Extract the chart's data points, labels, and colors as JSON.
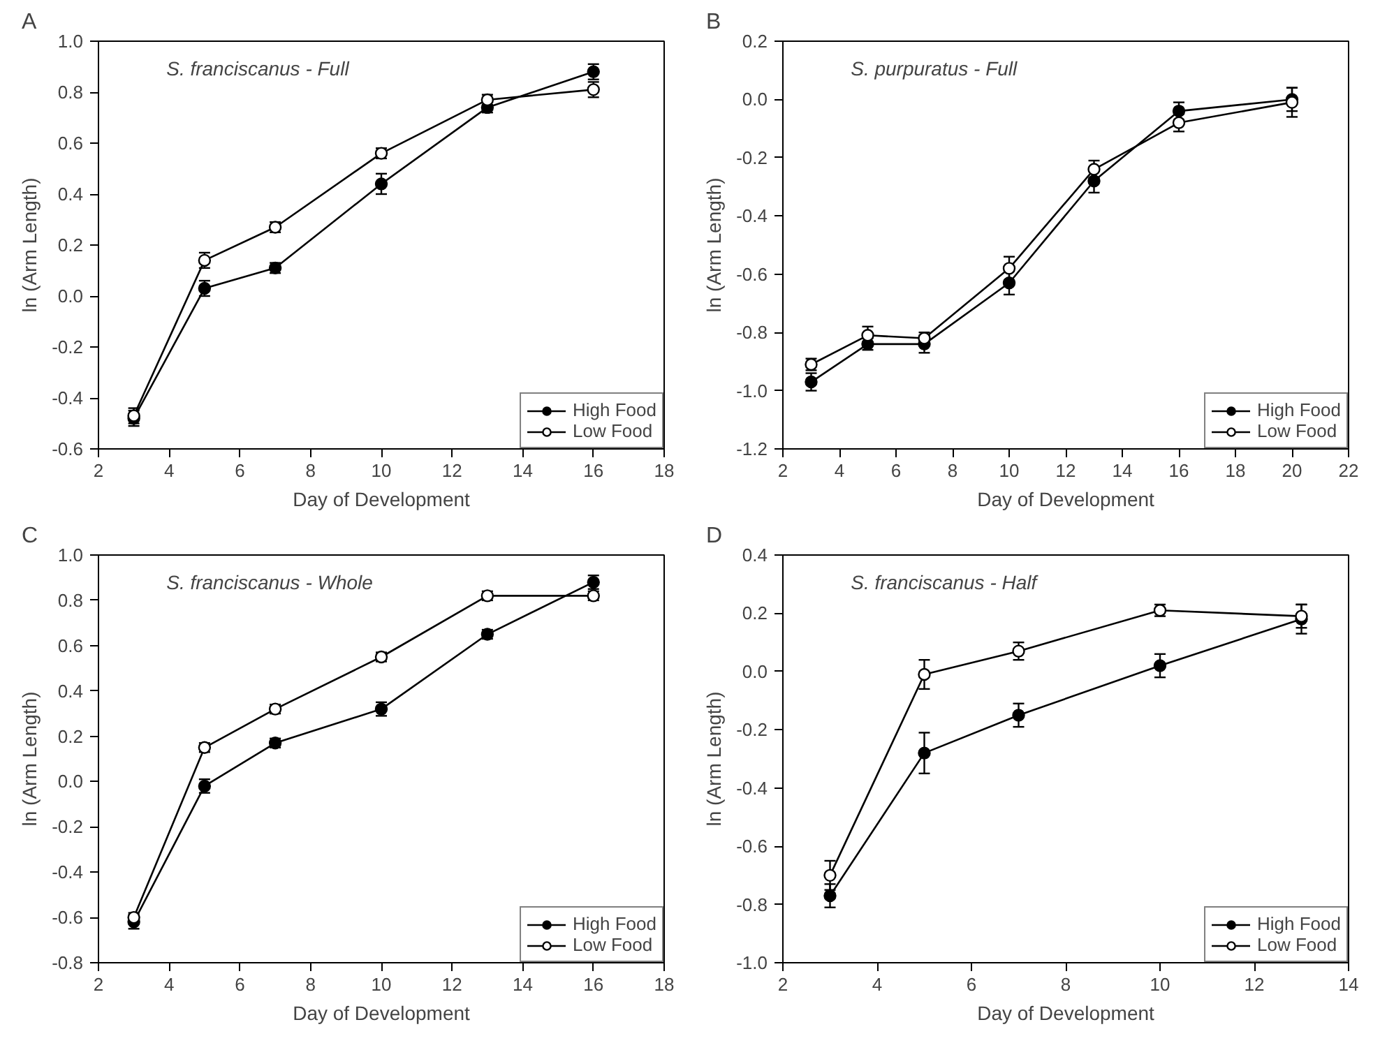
{
  "chart_data": [
    {
      "type": "line",
      "title": "A",
      "subtitle": "S. franciscanus - Full",
      "xlabel": "Day of Development",
      "ylabel": "ln (Arm Length)",
      "x": [
        3,
        5,
        7,
        10,
        13,
        16
      ],
      "series": [
        {
          "name": "High Food",
          "color": "#000000",
          "values": [
            -0.48,
            0.03,
            0.11,
            0.44,
            0.74,
            0.88
          ],
          "errors": [
            0.03,
            0.03,
            0.02,
            0.04,
            0.02,
            0.03
          ]
        },
        {
          "name": "Low Food",
          "color": "#ffffff",
          "values": [
            -0.47,
            0.14,
            0.27,
            0.56,
            0.77,
            0.81
          ],
          "errors": [
            0.03,
            0.03,
            0.02,
            0.02,
            0.02,
            0.03
          ]
        }
      ],
      "xlim": [
        2,
        18
      ],
      "xticks": [
        2,
        4,
        6,
        8,
        10,
        12,
        14,
        16,
        18
      ],
      "ylim": [
        -0.6,
        1.0
      ],
      "yticks": [
        {
          "value": -0.6,
          "label": "-0.6"
        },
        {
          "value": -0.4,
          "label": "-0.4"
        },
        {
          "value": -0.2,
          "label": "-0.2"
        },
        {
          "value": 0,
          "label": "0.0"
        },
        {
          "value": 0.2,
          "label": "0.2"
        },
        {
          "value": 0.4,
          "label": "0.4"
        },
        {
          "value": 0.6,
          "label": "0.6"
        },
        {
          "value": 0.8,
          "label": "0.8"
        },
        {
          "value": 1.0,
          "label": "1.0"
        }
      ],
      "grid": false,
      "legend": "bottom right",
      "marker": "circle",
      "line_style": "solid"
    },
    {
      "type": "line",
      "title": "B",
      "subtitle": "S. purpuratus - Full",
      "xlabel": "Day of Development",
      "ylabel": "ln (Arm Length)",
      "x": [
        3,
        5,
        7,
        10,
        13,
        16,
        20
      ],
      "series": [
        {
          "name": "High Food",
          "color": "#000000",
          "values": [
            -0.97,
            -0.84,
            -0.84,
            -0.63,
            -0.28,
            -0.04,
            0.0
          ],
          "errors": [
            0.03,
            0.02,
            0.03,
            0.04,
            0.04,
            0.03,
            0.04
          ]
        },
        {
          "name": "Low Food",
          "color": "#ffffff",
          "values": [
            -0.91,
            -0.81,
            -0.82,
            -0.58,
            -0.24,
            -0.08,
            -0.01
          ],
          "errors": [
            0.02,
            0.03,
            0.02,
            0.04,
            0.03,
            0.03,
            0.05
          ]
        }
      ],
      "xlim": [
        2,
        22
      ],
      "xticks": [
        2,
        4,
        6,
        8,
        10,
        12,
        14,
        16,
        18,
        20,
        22
      ],
      "ylim": [
        -1.2,
        0.2
      ],
      "yticks": [
        {
          "value": -1.2,
          "label": "-1.2"
        },
        {
          "value": -1.0,
          "label": "-1.0"
        },
        {
          "value": -0.8,
          "label": "-0.8"
        },
        {
          "value": -0.6,
          "label": "-0.6"
        },
        {
          "value": -0.4,
          "label": "-0.4"
        },
        {
          "value": -0.2,
          "label": "-0.2"
        },
        {
          "value": 0,
          "label": "0.0"
        },
        {
          "value": 0.2,
          "label": "0.2"
        }
      ],
      "grid": false,
      "legend": "bottom right",
      "marker": "circle",
      "line_style": "solid"
    },
    {
      "type": "line",
      "title": "C",
      "subtitle": "S. franciscanus - Whole",
      "xlabel": "Day of Development",
      "ylabel": "ln (Arm Length)",
      "x": [
        3,
        5,
        7,
        10,
        13,
        16
      ],
      "series": [
        {
          "name": "High Food",
          "color": "#000000",
          "values": [
            -0.62,
            -0.02,
            0.17,
            0.32,
            0.65,
            0.88
          ],
          "errors": [
            0.03,
            0.03,
            0.02,
            0.03,
            0.02,
            0.03
          ]
        },
        {
          "name": "Low Food",
          "color": "#ffffff",
          "values": [
            -0.6,
            0.15,
            0.32,
            0.55,
            0.82,
            0.82
          ],
          "errors": [
            0.02,
            0.02,
            0.02,
            0.02,
            0.02,
            0.02
          ]
        }
      ],
      "xlim": [
        2,
        18
      ],
      "xticks": [
        2,
        4,
        6,
        8,
        10,
        12,
        14,
        16,
        18
      ],
      "ylim": [
        -0.8,
        1.0
      ],
      "yticks": [
        {
          "value": -0.8,
          "label": "-0.8"
        },
        {
          "value": -0.6,
          "label": "-0.6"
        },
        {
          "value": -0.4,
          "label": "-0.4"
        },
        {
          "value": -0.2,
          "label": "-0.2"
        },
        {
          "value": 0,
          "label": "0.0"
        },
        {
          "value": 0.2,
          "label": "0.2"
        },
        {
          "value": 0.4,
          "label": "0.4"
        },
        {
          "value": 0.6,
          "label": "0.6"
        },
        {
          "value": 0.8,
          "label": "0.8"
        },
        {
          "value": 1.0,
          "label": "1.0"
        }
      ],
      "grid": false,
      "legend": "bottom right",
      "marker": "circle",
      "line_style": "solid"
    },
    {
      "type": "line",
      "title": "D",
      "subtitle": "S. franciscanus - Half",
      "xlabel": "Day of Development",
      "ylabel": "ln (Arm Length)",
      "x": [
        3,
        5,
        7,
        10,
        13
      ],
      "series": [
        {
          "name": "High Food",
          "color": "#000000",
          "values": [
            -0.77,
            -0.28,
            -0.15,
            0.02,
            0.18
          ],
          "errors": [
            0.04,
            0.07,
            0.04,
            0.04,
            0.05
          ]
        },
        {
          "name": "Low Food",
          "color": "#ffffff",
          "values": [
            -0.7,
            -0.01,
            0.07,
            0.21,
            0.19
          ],
          "errors": [
            0.05,
            0.05,
            0.03,
            0.02,
            0.04
          ]
        }
      ],
      "xlim": [
        2,
        14
      ],
      "xticks": [
        2,
        4,
        6,
        8,
        10,
        12,
        14
      ],
      "ylim": [
        -1.0,
        0.4
      ],
      "yticks": [
        {
          "value": -1.0,
          "label": "-1.0"
        },
        {
          "value": -0.8,
          "label": "-0.8"
        },
        {
          "value": -0.6,
          "label": "-0.6"
        },
        {
          "value": -0.4,
          "label": "-0.4"
        },
        {
          "value": -0.2,
          "label": "-0.2"
        },
        {
          "value": 0,
          "label": "0.0"
        },
        {
          "value": 0.2,
          "label": "0.2"
        },
        {
          "value": 0.4,
          "label": "0.4"
        }
      ],
      "grid": false,
      "legend": "bottom right",
      "marker": "circle",
      "line_style": "solid"
    }
  ]
}
